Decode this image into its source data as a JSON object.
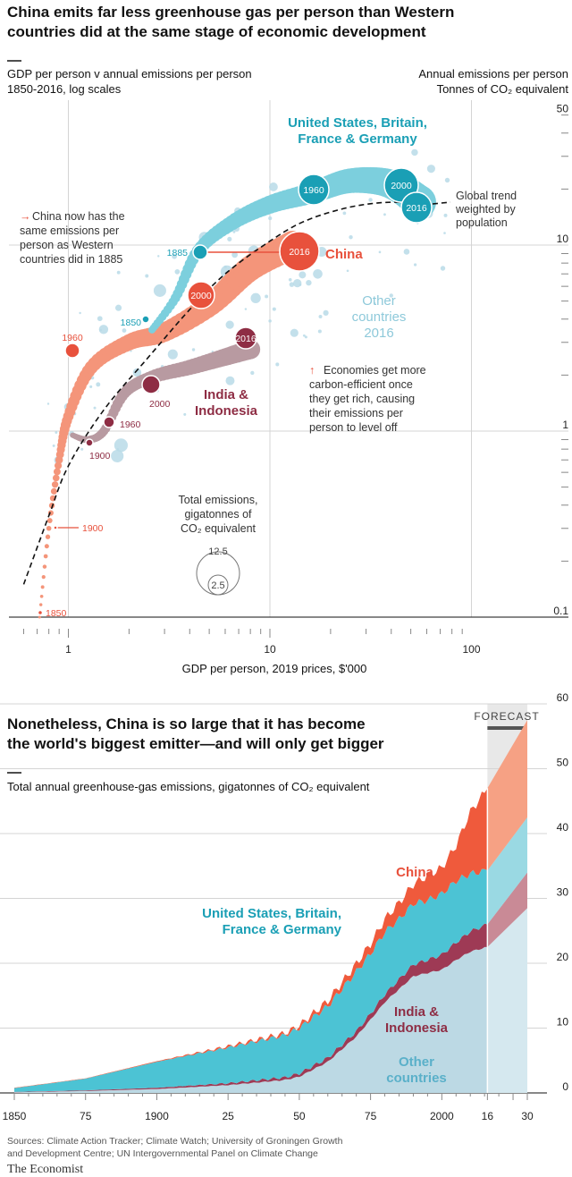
{
  "chart1": {
    "title_line1": "China emits far less greenhouse gas per person than Western",
    "title_line2": "countries did at the same stage of economic development",
    "subtitle_line1": "GDP per person v annual emissions per person",
    "subtitle_line2": "1850-2016, log scales",
    "ylabel_line1": "Annual emissions per person",
    "ylabel_line2": "Tonnes of CO₂ equivalent",
    "xlabel": "GDP per person, 2019 prices, $'000",
    "xticks": [
      {
        "value": 1,
        "label": "1"
      },
      {
        "value": 10,
        "label": "10"
      },
      {
        "value": 100,
        "label": "100"
      }
    ],
    "yticks": [
      {
        "value": 0.1,
        "label": "0.1"
      },
      {
        "value": 1,
        "label": "1"
      },
      {
        "value": 10,
        "label": "10"
      },
      {
        "value": 50,
        "label": "50"
      }
    ],
    "labels": {
      "west_line1": "United States, Britain,",
      "west_line2": "France & Germany",
      "china": "China",
      "india_line1": "India &",
      "india_line2": "Indonesia",
      "other_line1": "Other",
      "other_line2": "countries",
      "other_line3": "2016",
      "trend_line1": "Global trend",
      "trend_line2": "weighted by",
      "trend_line3": "population"
    },
    "notes": {
      "china_arrow": "→",
      "china_line1": "China now has the",
      "china_line2": "same emissions per",
      "china_line3": "person as Western",
      "china_line4": "countries did in 1885",
      "eff_arrow": "↑",
      "eff_line1": "Economies get more",
      "eff_line2": "carbon-efficient once",
      "eff_line3": "they get rich, causing",
      "eff_line4": "their emissions per",
      "eff_line5": "person to level off"
    },
    "size_legend": {
      "line1": "Total emissions,",
      "line2": "gigatonnes of",
      "line3": "CO₂ equivalent",
      "big": "12.5",
      "small": "2.5"
    },
    "year_labels": {
      "w1850": "1850",
      "w1885": "1885",
      "w1960": "1960",
      "w2000": "2000",
      "w2016": "2016",
      "c1850": "1850",
      "c1900": "1900",
      "c1960": "1960",
      "c2000": "2000",
      "c2016": "2016",
      "i1900": "1900",
      "i1960": "1960",
      "i2000": "2000",
      "i2016": "2016"
    },
    "colors": {
      "west": "#7ccfdd",
      "west_marker": "#1a9fb5",
      "china": "#f4957a",
      "china_marker": "#e8513c",
      "india": "#b89aa1",
      "india_marker": "#8e2d44",
      "other": "#b9dbe8",
      "trend": "#121212"
    }
  },
  "chart_data": [
    {
      "type": "scatter",
      "log_x": true,
      "log_y": true,
      "xlim": [
        0.6,
        100
      ],
      "ylim": [
        0.1,
        50
      ],
      "series": [
        {
          "name": "United States, Britain, France & Germany",
          "points": [
            [
              2.6,
              3.5
            ],
            [
              3.4,
              5.2
            ],
            [
              4.4,
              9.3
            ],
            [
              6.5,
              13.2
            ],
            [
              10,
              16.5
            ],
            [
              16,
              19
            ],
            [
              24,
              22
            ],
            [
              35,
              22
            ],
            [
              45,
              20
            ],
            [
              55,
              17
            ]
          ]
        },
        {
          "name": "China",
          "points": [
            [
              0.72,
              0.1
            ],
            [
              0.8,
              0.3
            ],
            [
              0.9,
              0.7
            ],
            [
              1.0,
              1.2
            ],
            [
              1.3,
              2.2
            ],
            [
              2,
              3
            ],
            [
              3,
              3.4
            ],
            [
              5.1,
              4.8
            ],
            [
              8,
              7.5
            ],
            [
              13,
              10
            ]
          ]
        },
        {
          "name": "India & Indonesia",
          "points": [
            [
              1.05,
              0.95
            ],
            [
              1.25,
              0.9
            ],
            [
              1.5,
              1.0
            ],
            [
              1.9,
              1.6
            ],
            [
              2.6,
              1.95
            ],
            [
              4,
              2.2
            ],
            [
              6,
              2.5
            ],
            [
              8,
              2.75
            ]
          ]
        },
        {
          "name": "Global trend weighted by population",
          "points": [
            [
              0.6,
              0.15
            ],
            [
              0.8,
              0.35
            ],
            [
              1,
              0.65
            ],
            [
              1.5,
              1.3
            ],
            [
              2.5,
              2.5
            ],
            [
              4,
              4.5
            ],
            [
              6,
              7
            ],
            [
              10,
              10.5
            ],
            [
              15,
              13.5
            ],
            [
              25,
              16
            ],
            [
              40,
              17
            ],
            [
              60,
              16.5
            ]
          ]
        }
      ]
    },
    {
      "type": "area",
      "title_line1": "Nonetheless, China is so large that it has become",
      "title_line2": "the world's biggest emitter—and will only get bigger",
      "ylabel": "Total annual greenhouse-gas emissions, gigatonnes of CO₂ equivalent",
      "forecast_label": "FORECAST",
      "forecast_range": [
        2016,
        2030
      ],
      "ylim": [
        0,
        60
      ],
      "yticks": [
        0,
        10,
        20,
        30,
        40,
        50,
        60
      ],
      "xticks": [
        {
          "value": 1850,
          "label": "1850"
        },
        {
          "value": 1875,
          "label": "75"
        },
        {
          "value": 1900,
          "label": "1900"
        },
        {
          "value": 1925,
          "label": "25"
        },
        {
          "value": 1950,
          "label": "50"
        },
        {
          "value": 1975,
          "label": "75"
        },
        {
          "value": 2000,
          "label": "2000"
        },
        {
          "value": 2016,
          "label": "16"
        },
        {
          "value": 2030,
          "label": "30"
        }
      ],
      "x": [
        1850,
        1875,
        1900,
        1925,
        1945,
        1950,
        1960,
        1970,
        1975,
        1980,
        1985,
        1990,
        1995,
        2000,
        2005,
        2010,
        2016,
        2030
      ],
      "series": [
        {
          "name": "Other countries",
          "values": [
            0.1,
            0.3,
            0.6,
            1.2,
            2.0,
            2.5,
            4.8,
            8.7,
            11.3,
            14.0,
            16.0,
            18.0,
            18.5,
            19.0,
            20.5,
            21.8,
            22.5,
            28.5
          ]
        },
        {
          "name": "India & Indonesia",
          "values": [
            0.05,
            0.1,
            0.2,
            0.3,
            0.4,
            0.5,
            0.6,
            0.8,
            0.9,
            1.2,
            1.5,
            1.8,
            2.0,
            2.3,
            2.7,
            3.1,
            3.5,
            5.5
          ]
        },
        {
          "name": "United States, Britain, France & Germany",
          "values": [
            0.6,
            1.8,
            4.0,
            5.5,
            6.5,
            7.0,
            8.0,
            9.2,
            9.3,
            9.6,
            9.3,
            9.4,
            9.2,
            9.4,
            9.5,
            8.9,
            8.3,
            8.5
          ]
        },
        {
          "name": "China",
          "values": [
            0.05,
            0.05,
            0.1,
            0.2,
            0.3,
            0.4,
            0.8,
            1.2,
            1.5,
            2.0,
            2.5,
            3.0,
            3.8,
            4.0,
            5.5,
            9.5,
            12.7,
            15.0
          ]
        }
      ],
      "labels": {
        "china": "China",
        "west_line1": "United States, Britain,",
        "west_line2": "France & Germany",
        "india_line1": "India &",
        "india_line2": "Indonesia",
        "other_line1": "Other",
        "other_line2": "countries"
      },
      "colors": {
        "other": "#bcd9e4",
        "india": "#9e3a55",
        "west": "#4cc3d4",
        "china": "#ef5a3c",
        "f_other": "#d5e8ef",
        "f_india": "#c98a96",
        "f_west": "#9ad9e3",
        "f_china": "#f6a184"
      }
    }
  ],
  "footer": {
    "source_line1": "Sources: Climate Action Tracker; Climate Watch; University of Groningen Growth",
    "source_line2": "and Development Centre; UN Intergovernmental Panel on Climate Change",
    "logo": "The Economist"
  }
}
